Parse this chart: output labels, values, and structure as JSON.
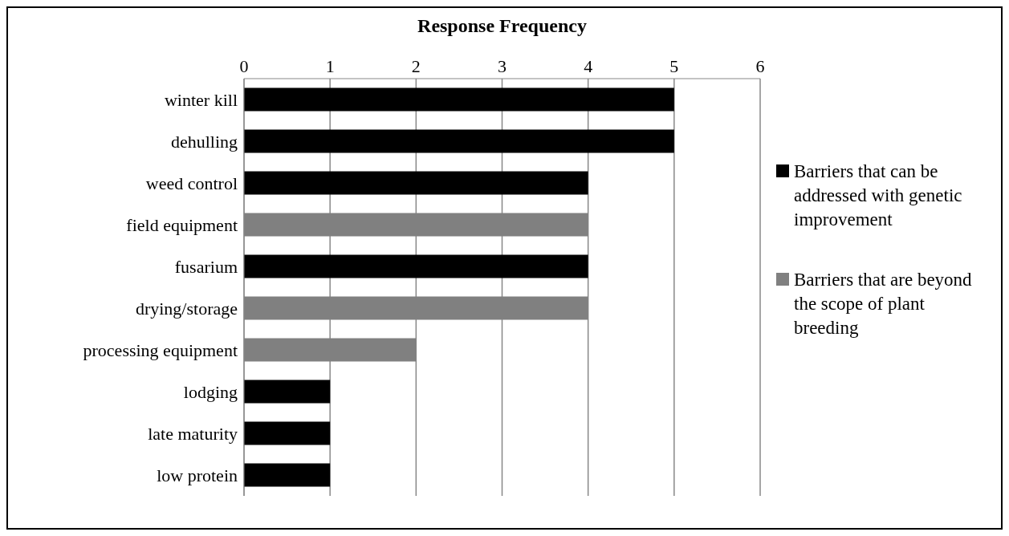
{
  "chart_data": {
    "type": "bar",
    "orientation": "horizontal",
    "stacked": true,
    "xlabel": "Response Frequency",
    "categories": [
      "winter kill",
      "dehulling",
      "weed control",
      "field equipment",
      "fusarium",
      "drying/storage",
      "processing equipment",
      "lodging",
      "late maturity",
      "low protein"
    ],
    "series": [
      {
        "name": "Barriers that can be addressed with genetic improvement",
        "color": "#000000",
        "values": [
          5,
          5,
          4,
          null,
          4,
          null,
          null,
          1,
          1,
          1
        ]
      },
      {
        "name": "Barriers that are beyond the scope of plant breeding",
        "color": "#808080",
        "values": [
          null,
          null,
          null,
          4,
          null,
          4,
          2,
          null,
          null,
          null
        ]
      }
    ],
    "xlim": [
      0,
      6
    ],
    "xticks": [
      0,
      1,
      2,
      3,
      4,
      5,
      6
    ],
    "grid": "x",
    "legend": "right"
  }
}
